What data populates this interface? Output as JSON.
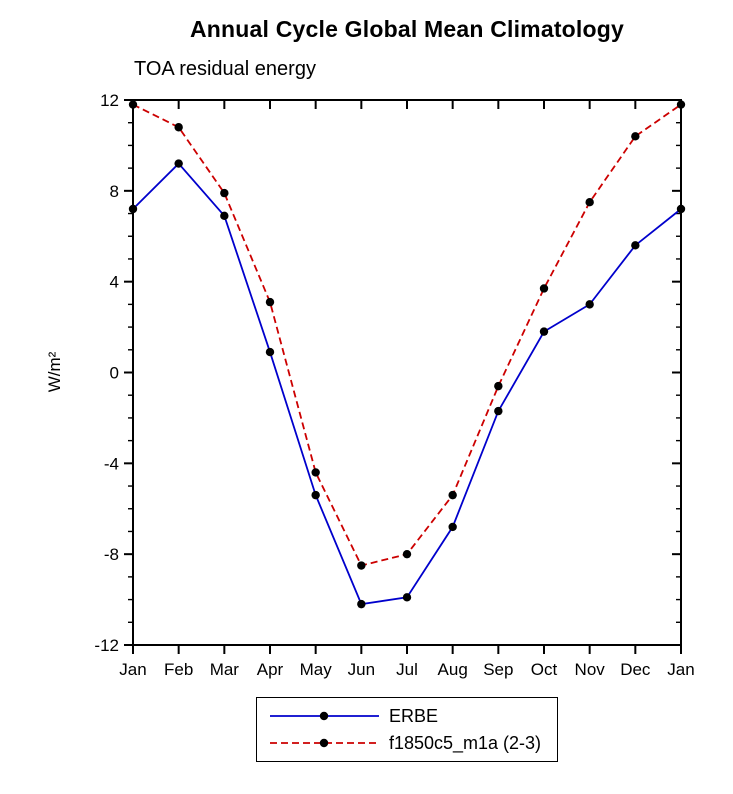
{
  "chart_data": {
    "type": "line",
    "title": "Annual Cycle Global Mean Climatology",
    "subtitle": "TOA residual energy",
    "ylabel": "W/m²",
    "xlabel": "",
    "categories": [
      "Jan",
      "Feb",
      "Mar",
      "Apr",
      "May",
      "Jun",
      "Jul",
      "Aug",
      "Sep",
      "Oct",
      "Nov",
      "Dec",
      "Jan"
    ],
    "series": [
      {
        "name": "ERBE",
        "color": "#0000cc",
        "dash": "solid",
        "values": [
          7.2,
          9.2,
          6.9,
          0.9,
          -5.4,
          -10.2,
          -9.9,
          -6.8,
          -1.7,
          1.8,
          3.0,
          5.6,
          7.2
        ]
      },
      {
        "name": "f1850c5_m1a (2-3)",
        "color": "#cc0000",
        "dash": "dashed",
        "values": [
          11.8,
          10.8,
          7.9,
          3.1,
          -4.4,
          -8.5,
          -8.0,
          -5.4,
          -0.6,
          3.7,
          7.5,
          10.4,
          11.8
        ]
      }
    ],
    "ylim": [
      -12,
      12
    ],
    "yticks": [
      -12,
      -8,
      -4,
      0,
      4,
      8,
      12
    ],
    "minor_tick_step": 1,
    "marker": "filled-circle",
    "marker_color": "#000000",
    "grid": false,
    "legend_position": "bottom"
  }
}
